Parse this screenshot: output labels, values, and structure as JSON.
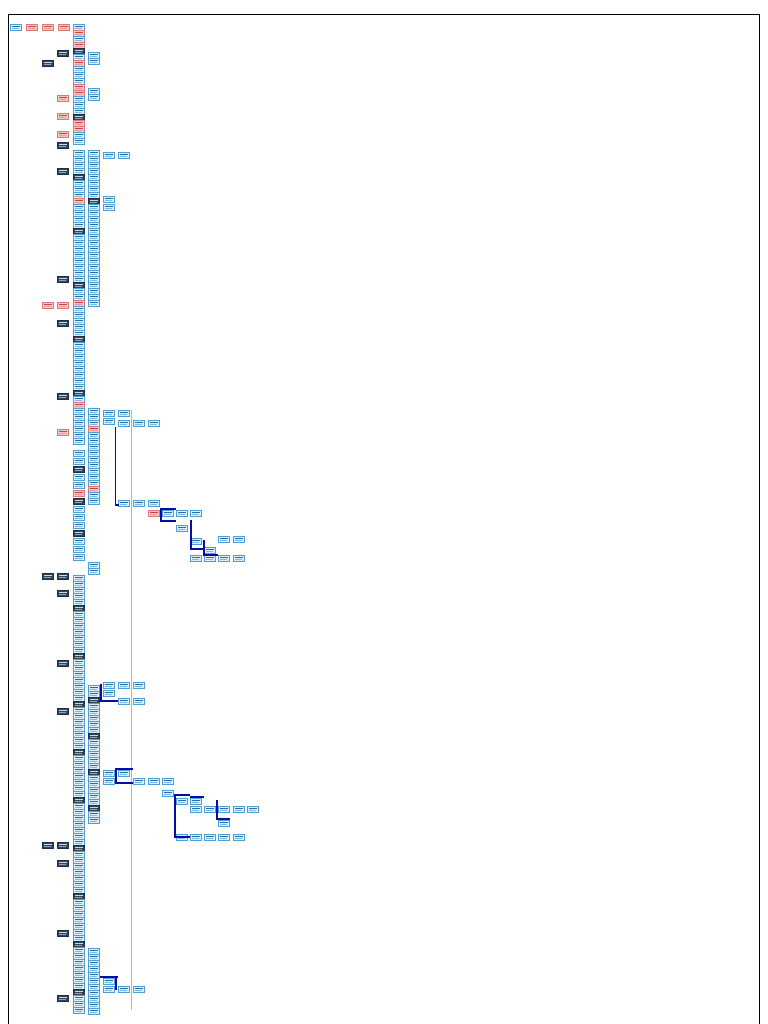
{
  "diagram": {
    "title": "",
    "legend": [
      {
        "label": "",
        "kind": "blue"
      },
      {
        "label": "",
        "kind": "red"
      },
      {
        "label": "",
        "kind": "red"
      },
      {
        "label": "",
        "kind": "red"
      },
      {
        "label": "",
        "kind": "blue"
      }
    ],
    "node_kinds": {
      "blue": "#dbeefc",
      "red": "#f6c4c4",
      "dark": "#31465e"
    },
    "edge_color": "#0a0aa8"
  }
}
